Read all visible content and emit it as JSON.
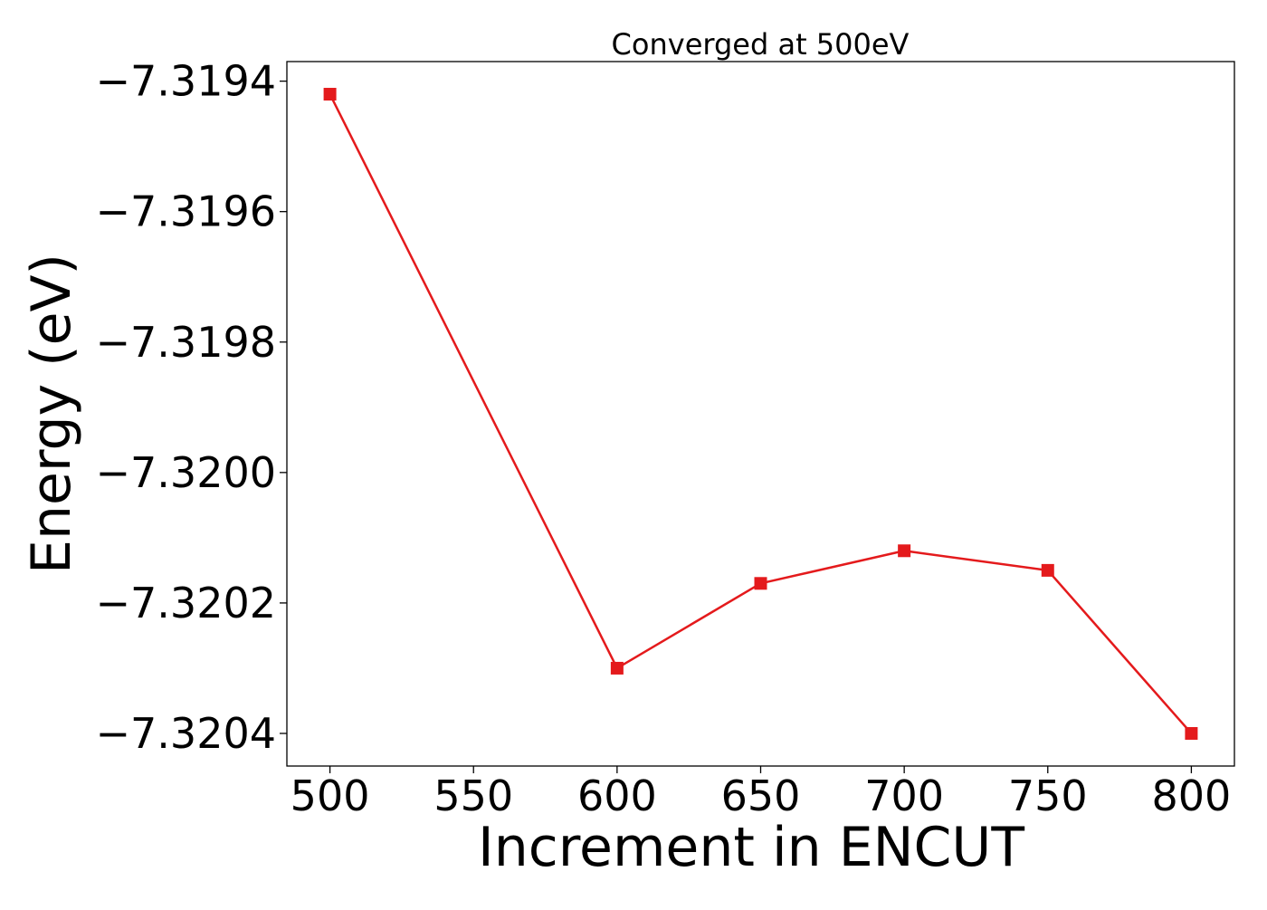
{
  "chart_data": {
    "type": "line",
    "title": "Converged at 500eV",
    "xlabel": "Increment in ENCUT",
    "ylabel": "Energy (eV)",
    "x": [
      500,
      600,
      650,
      700,
      750,
      800
    ],
    "series": [
      {
        "values": [
          -7.31942,
          -7.3203,
          -7.32017,
          -7.32012,
          -7.32015,
          -7.3204
        ],
        "color": "#e41a1c",
        "marker": "square"
      }
    ],
    "xticks": [
      500,
      550,
      600,
      650,
      700,
      750,
      800
    ],
    "xtick_labels": [
      "500",
      "550",
      "600",
      "650",
      "700",
      "750",
      "800"
    ],
    "yticks": [
      -7.3194,
      -7.3196,
      -7.3198,
      -7.32,
      -7.3202,
      -7.3204
    ],
    "ytick_labels": [
      "−7.3194",
      "−7.3196",
      "−7.3198",
      "−7.3200",
      "−7.3202",
      "−7.3204"
    ],
    "xlim": [
      485,
      815
    ],
    "ylim": [
      -7.32045,
      -7.31937
    ],
    "grid": false,
    "legend": false
  }
}
